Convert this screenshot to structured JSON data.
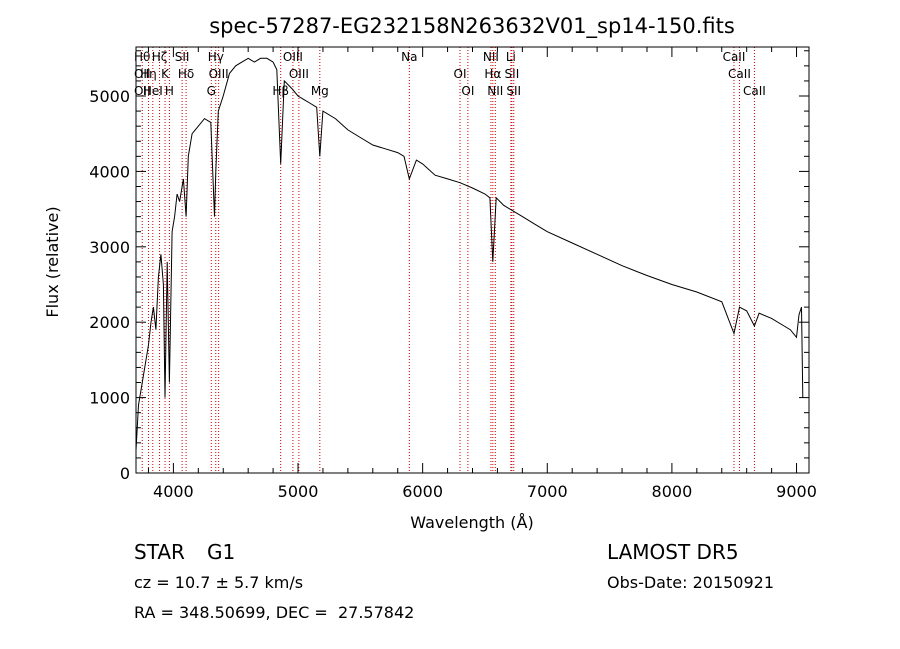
{
  "chart_data": {
    "type": "line",
    "title": "spec-57287-EG232158N263632V01_sp14-150.fits",
    "xlabel": "Wavelength (Å)",
    "ylabel": "Flux (relative)",
    "xlim": [
      3700,
      9100
    ],
    "ylim": [
      0,
      5650
    ],
    "xticks": [
      4000,
      5000,
      6000,
      7000,
      8000,
      9000
    ],
    "yticks": [
      0,
      1000,
      2000,
      3000,
      4000,
      5000
    ],
    "xtick_labels": [
      "4000",
      "5000",
      "6000",
      "7000",
      "8000",
      "9000"
    ],
    "ytick_labels": [
      "0",
      "1000",
      "2000",
      "3000",
      "4000",
      "5000"
    ],
    "grid": false,
    "line_color": "#000000",
    "marker_line_color": "#cc0000",
    "series": [
      {
        "x": [
          3700,
          3720,
          3740,
          3760,
          3780,
          3800,
          3820,
          3840,
          3860,
          3880,
          3900,
          3920,
          3933,
          3950,
          3968,
          3990,
          4010,
          4030,
          4050,
          4080,
          4102,
          4120,
          4150,
          4200,
          4250,
          4300,
          4330,
          4340,
          4360,
          4400,
          4450,
          4500,
          4550,
          4600,
          4650,
          4700,
          4750,
          4800,
          4830,
          4861,
          4890,
          4950,
          5000,
          5050,
          5100,
          5150,
          5175,
          5200,
          5300,
          5400,
          5500,
          5600,
          5700,
          5800,
          5850,
          5893,
          5950,
          6000,
          6100,
          6200,
          6300,
          6400,
          6500,
          6540,
          6563,
          6590,
          6650,
          6700,
          6800,
          6900,
          7000,
          7200,
          7400,
          7600,
          7800,
          8000,
          8200,
          8400,
          8498,
          8542,
          8600,
          8662,
          8700,
          8800,
          8900,
          8950,
          9000,
          9020,
          9040,
          9050
        ],
        "y": [
          300,
          900,
          1100,
          1300,
          1500,
          1700,
          2000,
          2200,
          1900,
          2600,
          2900,
          2500,
          1000,
          2800,
          1200,
          3200,
          3400,
          3700,
          3600,
          3900,
          3400,
          4200,
          4500,
          4600,
          4700,
          4650,
          3400,
          4000,
          4800,
          5000,
          5300,
          5400,
          5450,
          5500,
          5450,
          5500,
          5500,
          5450,
          5350,
          4100,
          5200,
          5100,
          5000,
          4950,
          4900,
          4850,
          4200,
          4800,
          4700,
          4550,
          4450,
          4350,
          4300,
          4250,
          4200,
          3900,
          4150,
          4100,
          3950,
          3900,
          3850,
          3780,
          3700,
          3650,
          2800,
          3650,
          3550,
          3500,
          3400,
          3300,
          3200,
          3050,
          2900,
          2750,
          2620,
          2500,
          2400,
          2270,
          1850,
          2200,
          2150,
          1950,
          2120,
          2050,
          1950,
          1900,
          1800,
          2100,
          2200,
          1000
        ]
      }
    ],
    "line_markers": [
      {
        "x": 3750,
        "labels": [
          "Hθ",
          "OII",
          "OII"
        ]
      },
      {
        "x": 3800,
        "labels": [
          "Hη"
        ]
      },
      {
        "x": 3835,
        "labels": [
          "HeI"
        ]
      },
      {
        "x": 3889,
        "labels": [
          "Hζ"
        ]
      },
      {
        "x": 3933,
        "labels": [
          "K"
        ]
      },
      {
        "x": 3968,
        "labels": [
          "H"
        ]
      },
      {
        "x": 4070,
        "labels": [
          "SII"
        ]
      },
      {
        "x": 4102,
        "labels": [
          "Hδ"
        ]
      },
      {
        "x": 4304,
        "labels": [
          "G"
        ]
      },
      {
        "x": 4340,
        "labels": [
          "Hγ"
        ]
      },
      {
        "x": 4363,
        "labels": [
          "OIII"
        ]
      },
      {
        "x": 4861,
        "labels": [
          "Hβ"
        ]
      },
      {
        "x": 4959,
        "labels": [
          "OIII"
        ]
      },
      {
        "x": 5007,
        "labels": [
          "OIII"
        ]
      },
      {
        "x": 5175,
        "labels": [
          "Mg"
        ]
      },
      {
        "x": 5893,
        "labels": [
          "Na"
        ]
      },
      {
        "x": 6300,
        "labels": [
          "OI"
        ]
      },
      {
        "x": 6363,
        "labels": [
          "OI"
        ]
      },
      {
        "x": 6548,
        "labels": [
          "NII"
        ]
      },
      {
        "x": 6563,
        "labels": [
          "Hα"
        ]
      },
      {
        "x": 6583,
        "labels": [
          "NII"
        ]
      },
      {
        "x": 6708,
        "labels": [
          "Li"
        ]
      },
      {
        "x": 6716,
        "labels": [
          "SII"
        ]
      },
      {
        "x": 6731,
        "labels": [
          "SII"
        ]
      },
      {
        "x": 8498,
        "labels": [
          "CaII"
        ]
      },
      {
        "x": 8542,
        "labels": [
          "CaII"
        ]
      },
      {
        "x": 8662,
        "labels": [
          "CaII"
        ]
      }
    ]
  },
  "footer": {
    "object_class": "STAR",
    "subclass": "G1",
    "survey": "LAMOST DR5",
    "redshift": "cz = 10.7 ± 5.7 km/s",
    "obs_date": "Obs-Date: 20150921",
    "coords": "RA = 348.50699, DEC =  27.57842"
  }
}
